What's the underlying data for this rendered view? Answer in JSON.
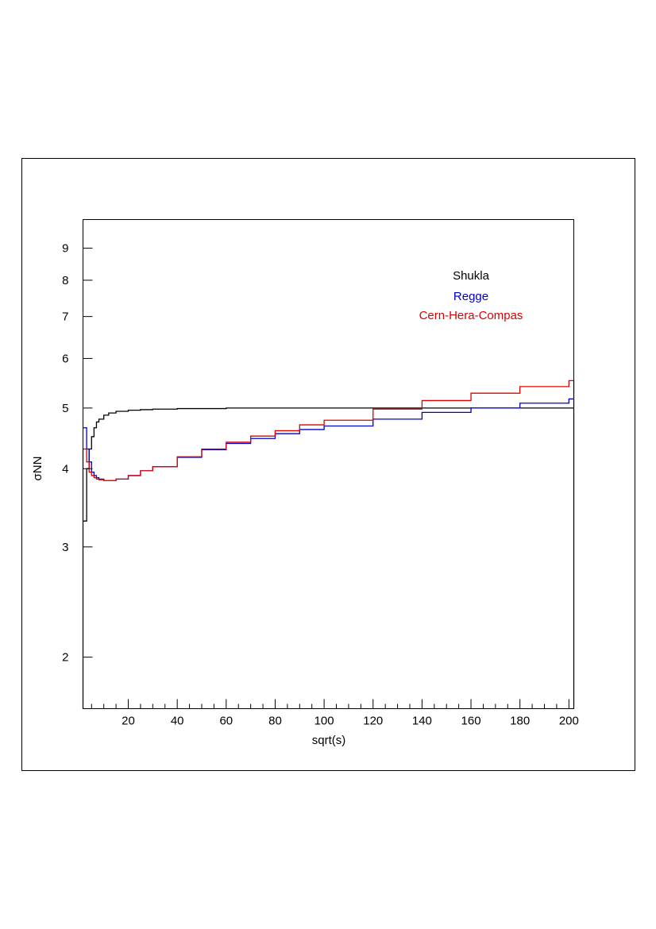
{
  "chart_data": {
    "type": "line",
    "xlabel": "sqrt(s)",
    "ylabel": "σNN",
    "xlim": [
      1.5,
      202
    ],
    "ylim": [
      1.655,
      10
    ],
    "yscale": "log",
    "xticks": [
      20,
      40,
      60,
      80,
      100,
      120,
      140,
      160,
      180,
      200
    ],
    "yticks": [
      2,
      3,
      4,
      5,
      6,
      7,
      8,
      9
    ],
    "x": [
      2,
      3,
      4,
      5,
      6,
      7,
      8,
      10,
      12,
      15,
      20,
      25,
      30,
      40,
      50,
      60,
      70,
      80,
      90,
      100,
      120,
      140,
      160,
      180,
      200,
      202
    ],
    "series": [
      {
        "name": "Shukla",
        "color": "#000000",
        "values": [
          3.3,
          4.0,
          4.3,
          4.5,
          4.65,
          4.75,
          4.8,
          4.87,
          4.91,
          4.94,
          4.96,
          4.97,
          4.98,
          4.99,
          4.99,
          5.0,
          5.0,
          5.0,
          5.0,
          5.0,
          5.0,
          5.0,
          5.0,
          5.0,
          5.0,
          5.0
        ]
      },
      {
        "name": "Regge",
        "color": "#0000cc",
        "values": [
          4.65,
          4.3,
          4.1,
          3.95,
          3.9,
          3.87,
          3.85,
          3.83,
          3.83,
          3.85,
          3.9,
          3.97,
          4.03,
          4.17,
          4.29,
          4.39,
          4.47,
          4.55,
          4.62,
          4.68,
          4.8,
          4.92,
          5.0,
          5.09,
          5.17,
          5.18
        ]
      },
      {
        "name": "Cern-Hera-Compas",
        "color": "#dd0000",
        "values": [
          4.3,
          4.1,
          3.95,
          3.9,
          3.87,
          3.85,
          3.84,
          3.83,
          3.83,
          3.85,
          3.9,
          3.97,
          4.03,
          4.18,
          4.3,
          4.41,
          4.51,
          4.6,
          4.7,
          4.78,
          4.98,
          5.14,
          5.28,
          5.41,
          5.53,
          5.55
        ]
      }
    ],
    "legend": "top-right",
    "grid": false
  }
}
